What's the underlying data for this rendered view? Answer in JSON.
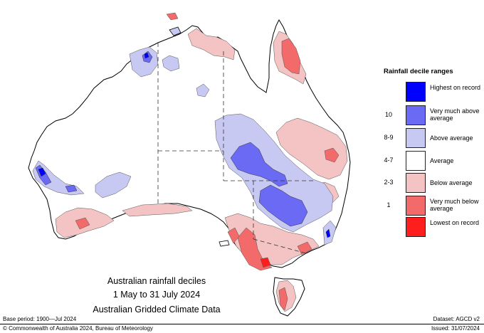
{
  "map_title": {
    "line1": "Australian rainfall deciles",
    "line2": "1 May to 31 July 2024",
    "line3": "Australian Gridded Climate Data"
  },
  "legend": {
    "title": "Rainfall decile ranges",
    "items": [
      {
        "code": "",
        "label": "Highest on record",
        "color": "#0000ff"
      },
      {
        "code": "10",
        "label": "Very much above average",
        "color": "#6a6af4"
      },
      {
        "code": "8-9",
        "label": "Above average",
        "color": "#c7c9f3"
      },
      {
        "code": "4-7",
        "label": "Average",
        "color": "#ffffff"
      },
      {
        "code": "2-3",
        "label": "Below average",
        "color": "#f4c3c3"
      },
      {
        "code": "1",
        "label": "Very much below average",
        "color": "#f26a6a"
      },
      {
        "code": "",
        "label": "Lowest on record",
        "color": "#ff1e1e"
      }
    ]
  },
  "footer": {
    "base_period": "Base period: 1900—Jul 2024",
    "copyright": "© Commonwealth of Australia 2024, Bureau of Meteorology",
    "dataset": "Dataset: AGCD v2",
    "issued": "Issued: 31/07/2024"
  }
}
